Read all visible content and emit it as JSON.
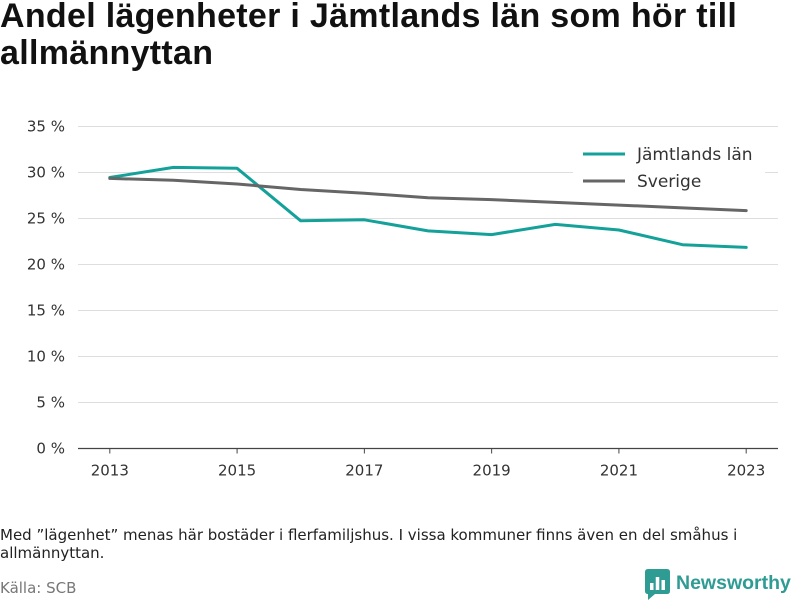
{
  "chart_data": {
    "type": "line",
    "title": "Andel lägenheter i Jämtlands län som hör till allmännyttan",
    "xlabel": "",
    "ylabel": "",
    "x": [
      2013,
      2014,
      2015,
      2016,
      2017,
      2018,
      2019,
      2020,
      2021,
      2022,
      2023
    ],
    "xlim": [
      2012.5,
      2023.5
    ],
    "ylim": [
      0,
      35
    ],
    "xticks": [
      {
        "value": 2013,
        "label": "2013"
      },
      {
        "value": 2015,
        "label": "2015"
      },
      {
        "value": 2017,
        "label": "2017"
      },
      {
        "value": 2019,
        "label": "2019"
      },
      {
        "value": 2021,
        "label": "2021"
      },
      {
        "value": 2023,
        "label": "2023"
      }
    ],
    "yticks": [
      {
        "value": 0,
        "label": "0 %"
      },
      {
        "value": 5,
        "label": "5 %"
      },
      {
        "value": 10,
        "label": "10 %"
      },
      {
        "value": 15,
        "label": "15 %"
      },
      {
        "value": 20,
        "label": "20 %"
      },
      {
        "value": 25,
        "label": "25 %"
      },
      {
        "value": 30,
        "label": "30 %"
      },
      {
        "value": 35,
        "label": "35 %"
      }
    ],
    "grid": true,
    "legend": "top-right",
    "series": [
      {
        "name": "Jämtlands län",
        "color": "#14a19a",
        "values": [
          29.4,
          30.5,
          30.4,
          24.7,
          24.8,
          23.6,
          23.2,
          24.3,
          23.7,
          22.1,
          21.8
        ]
      },
      {
        "name": "Sverige",
        "color": "#666666",
        "values": [
          29.3,
          29.1,
          28.7,
          28.1,
          27.7,
          27.2,
          27.0,
          26.7,
          26.4,
          26.1,
          25.8
        ]
      }
    ],
    "note": "Med ”lägenhet” menas här bostäder i flerfamiljshus. I vissa kommuner finns även en del småhus i allmännyttan.",
    "source": "Källa: SCB"
  },
  "brand": {
    "name": "Newsworthy",
    "color": "#2f9c94",
    "icon": "newsworthy-logo-icon"
  }
}
